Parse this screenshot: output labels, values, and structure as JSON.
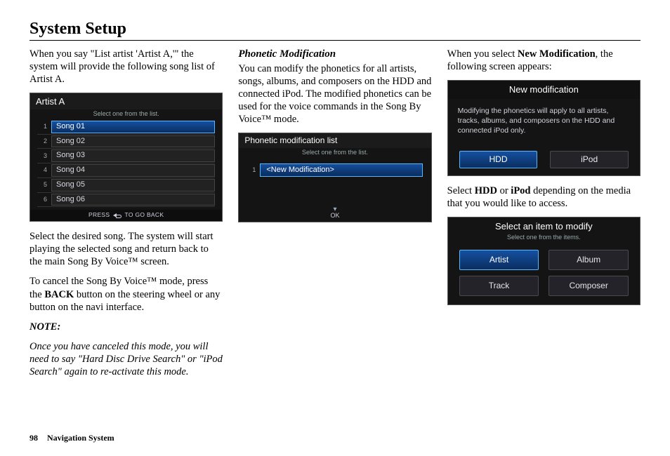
{
  "page": {
    "title": "System Setup",
    "number": "98",
    "footer_label": "Navigation System"
  },
  "col1": {
    "intro": "When you say \"List artist 'Artist A,'\" the system will provide the following song list of Artist A.",
    "screen": {
      "header": "Artist A",
      "subheader": "Select one from the list.",
      "songs": [
        {
          "n": "1",
          "name": "Song 01",
          "selected": true
        },
        {
          "n": "2",
          "name": "Song 02",
          "selected": false
        },
        {
          "n": "3",
          "name": "Song 03",
          "selected": false
        },
        {
          "n": "4",
          "name": "Song 04",
          "selected": false
        },
        {
          "n": "5",
          "name": "Song 05",
          "selected": false
        },
        {
          "n": "6",
          "name": "Song 06",
          "selected": false
        }
      ],
      "footer_pre": "PRESS",
      "footer_post": "TO GO BACK"
    },
    "para2": "Select the desired song. The system will start playing the selected song and return back to the main Song By Voice™ screen.",
    "para3_pre": "To cancel the Song By Voice™ mode, press the ",
    "para3_bold": "BACK",
    "para3_post": " button on the steering wheel or any button on the navi interface.",
    "note_label": "NOTE:",
    "note_body": "Once you have canceled this mode, you will need to say \"Hard Disc Drive Search\" or \"iPod Search\" again to re-activate this mode."
  },
  "col2": {
    "heading": "Phonetic Modification",
    "para1": "You can modify the phonetics for all artists, songs, albums, and composers on the HDD and connected iPod. The modified phonetics can be used for the voice commands in the Song By Voice™ mode.",
    "screen": {
      "header": "Phonetic modification list",
      "subheader": "Select one from the list.",
      "item_num": "1",
      "item_label": "<New Modification>",
      "ok": "OK"
    }
  },
  "col3": {
    "intro_pre": "When you select ",
    "intro_bold": "New Modification",
    "intro_post": ", the following screen appears:",
    "screen1": {
      "title": "New modification",
      "body": "Modifying the phonetics will apply to all artists, tracks, albums, and composers on the HDD and connected iPod only.",
      "btn_hdd": "HDD",
      "btn_ipod": "iPod"
    },
    "para2_pre": "Select ",
    "para2_b1": "HDD",
    "para2_mid": " or ",
    "para2_b2": "iPod",
    "para2_post": " depending on the media that you would like to access.",
    "screen2": {
      "title": "Select an item to modify",
      "sub": "Select one from the items.",
      "artist": "Artist",
      "album": "Album",
      "track": "Track",
      "composer": "Composer"
    }
  }
}
